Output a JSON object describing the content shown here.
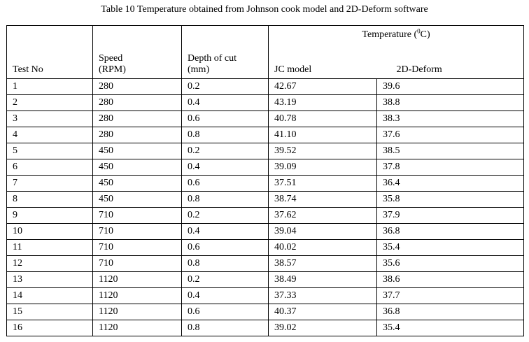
{
  "caption": "Table 10 Temperature obtained from Johnson cook model and 2D-Deform software",
  "headers": {
    "test_no": "Test No",
    "speed_line1": "Speed",
    "speed_line2": "(RPM)",
    "depth_line1": "Depth of cut",
    "depth_line2": "(mm)",
    "temperature_prefix": "Temperature (",
    "temperature_sup": "0",
    "temperature_suffix": "C)",
    "jc_model": "JC model",
    "deform": "2D-Deform"
  },
  "rows": [
    {
      "test": "1",
      "speed": "280",
      "depth": "0.2",
      "jc": "42.67",
      "deform": "39.6"
    },
    {
      "test": "2",
      "speed": "280",
      "depth": "0.4",
      "jc": "43.19",
      "deform": "38.8"
    },
    {
      "test": "3",
      "speed": "280",
      "depth": "0.6",
      "jc": "40.78",
      "deform": "38.3"
    },
    {
      "test": "4",
      "speed": "280",
      "depth": "0.8",
      "jc": "41.10",
      "deform": "37.6"
    },
    {
      "test": "5",
      "speed": "450",
      "depth": "0.2",
      "jc": "39.52",
      "deform": "38.5"
    },
    {
      "test": "6",
      "speed": "450",
      "depth": "0.4",
      "jc": "39.09",
      "deform": "37.8"
    },
    {
      "test": "7",
      "speed": "450",
      "depth": "0.6",
      "jc": "37.51",
      "deform": "36.4"
    },
    {
      "test": "8",
      "speed": "450",
      "depth": "0.8",
      "jc": "38.74",
      "deform": "35.8"
    },
    {
      "test": "9",
      "speed": "710",
      "depth": "0.2",
      "jc": "37.62",
      "deform": "37.9"
    },
    {
      "test": "10",
      "speed": "710",
      "depth": "0.4",
      "jc": "39.04",
      "deform": "36.8"
    },
    {
      "test": "11",
      "speed": "710",
      "depth": "0.6",
      "jc": "40.02",
      "deform": "35.4"
    },
    {
      "test": "12",
      "speed": "710",
      "depth": "0.8",
      "jc": "38.57",
      "deform": "35.6"
    },
    {
      "test": "13",
      "speed": "1120",
      "depth": "0.2",
      "jc": "38.49",
      "deform": "38.6"
    },
    {
      "test": "14",
      "speed": "1120",
      "depth": "0.4",
      "jc": "37.33",
      "deform": "37.7"
    },
    {
      "test": "15",
      "speed": "1120",
      "depth": "0.6",
      "jc": "40.37",
      "deform": "36.8"
    },
    {
      "test": "16",
      "speed": "1120",
      "depth": "0.8",
      "jc": "39.02",
      "deform": "35.4"
    }
  ]
}
